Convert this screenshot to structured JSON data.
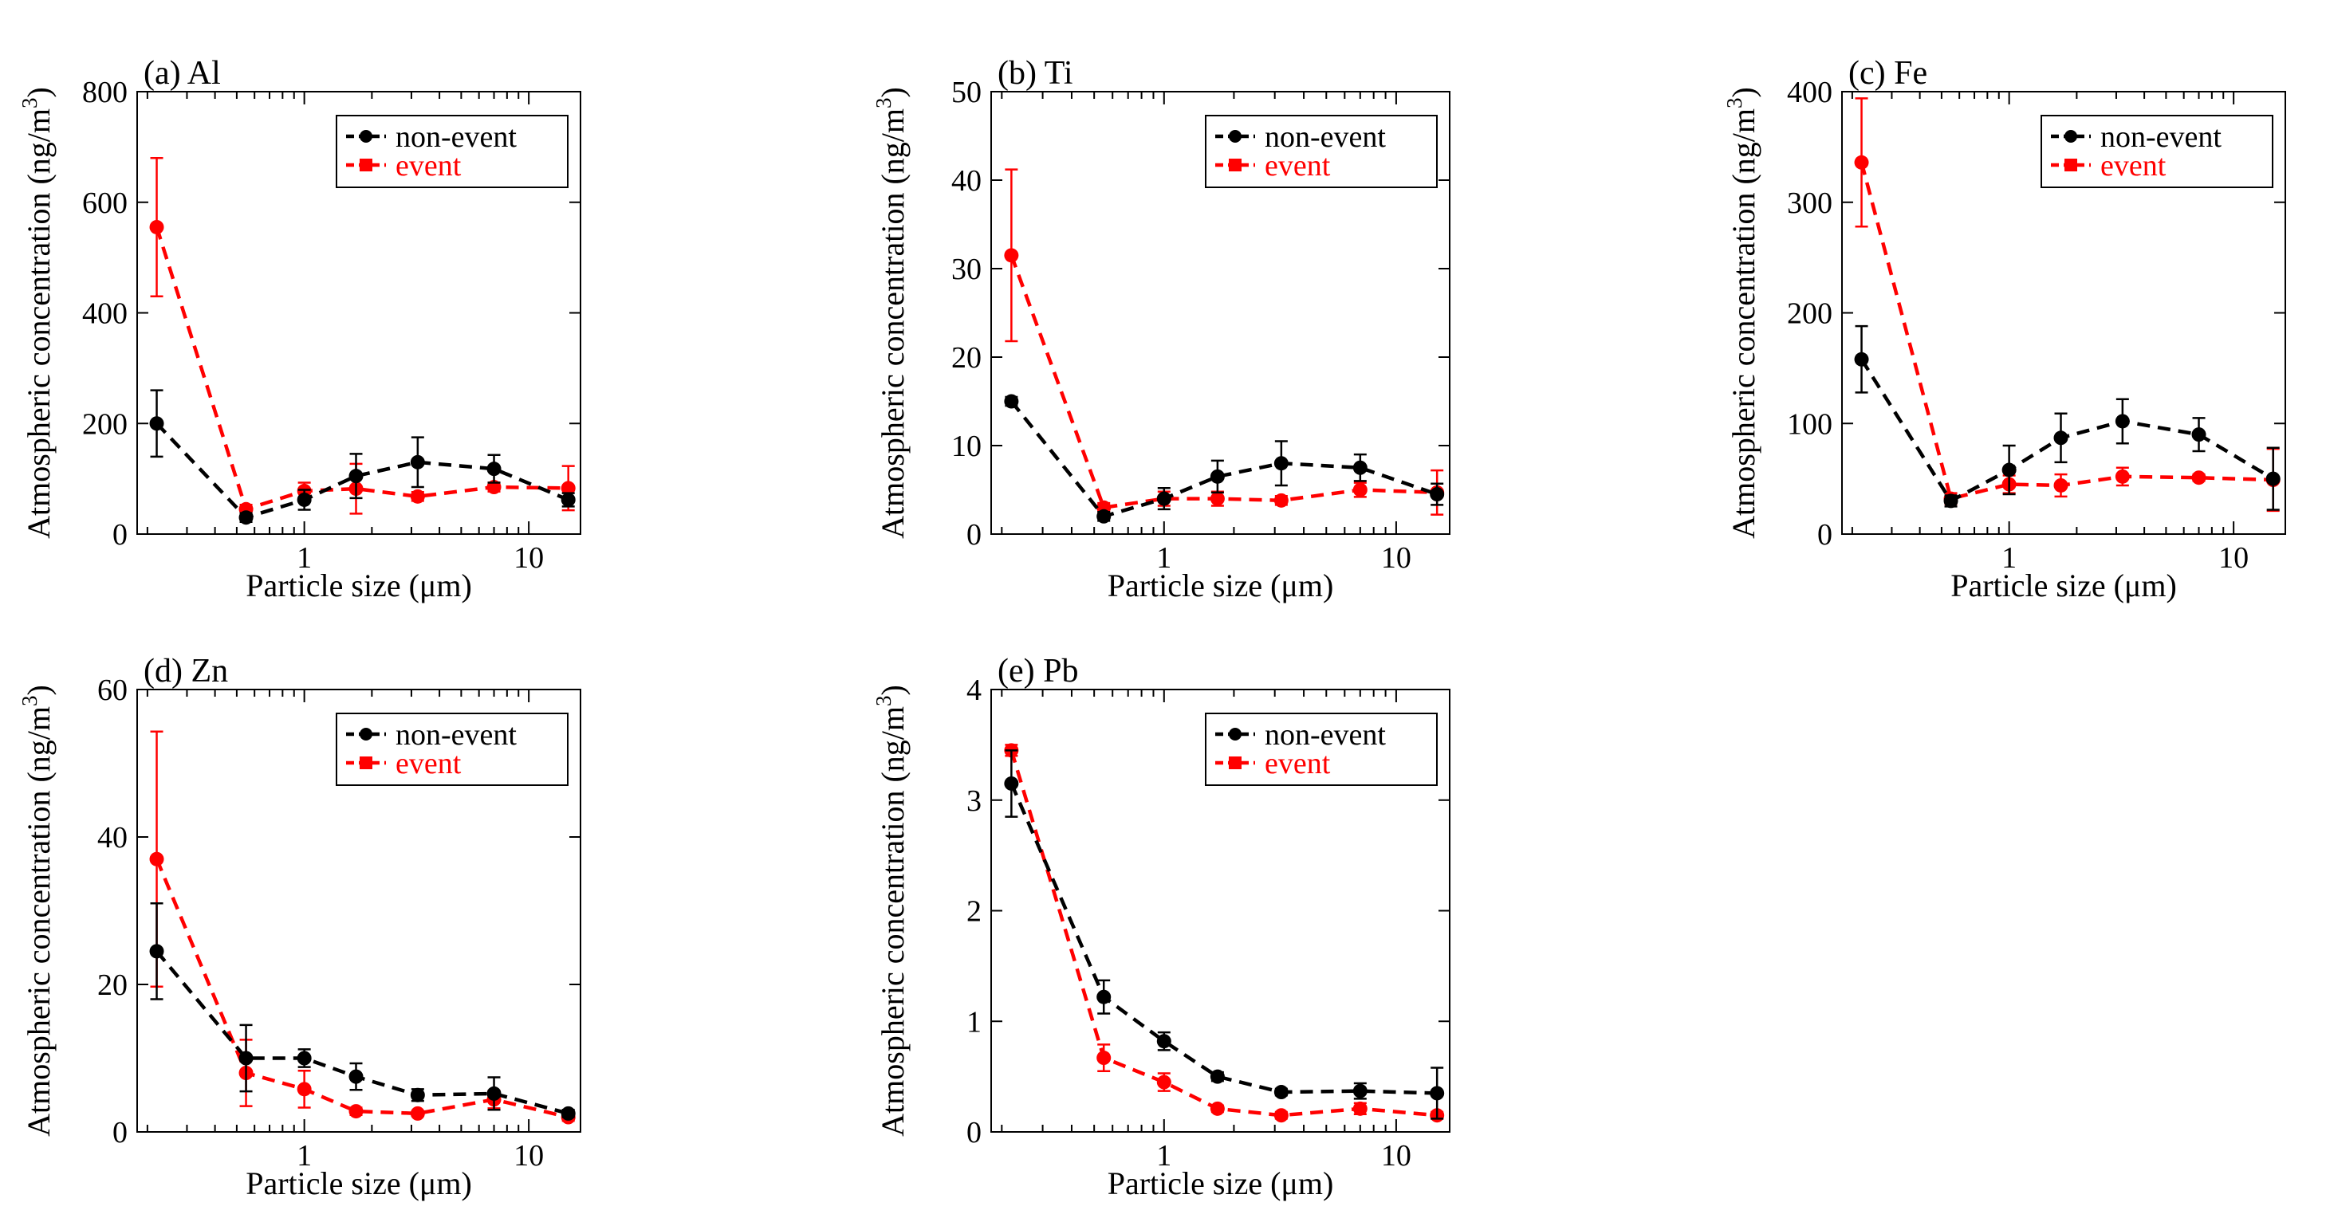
{
  "colors": {
    "non_event": "#000000",
    "event": "#ff0000",
    "axis": "#000000"
  },
  "chart_data": [
    {
      "type": "line",
      "title": "(a) Al",
      "xlabel": "Particle size (μm)",
      "ylabel": "Atmospheric concentration (ng/m",
      "ylabel_sup": "3",
      "ylabel_close": ")",
      "xscale": "log",
      "xlim": [
        0.18,
        17
      ],
      "ylim": [
        0,
        800
      ],
      "xticks": [
        1,
        10
      ],
      "xtick_labels": [
        "1",
        "10"
      ],
      "yticks": [
        0,
        200,
        400,
        600,
        800
      ],
      "ytick_labels": [
        "0",
        "200",
        "400",
        "600",
        "800"
      ],
      "legend": "top-right",
      "series": [
        {
          "name": "non-event",
          "x": [
            0.22,
            0.55,
            1.0,
            1.7,
            3.2,
            7.0,
            15.0
          ],
          "y": [
            200,
            30,
            62,
            105,
            130,
            118,
            62
          ],
          "err": [
            60,
            8,
            18,
            40,
            45,
            25,
            12
          ]
        },
        {
          "name": "event",
          "x": [
            0.22,
            0.55,
            1.0,
            1.7,
            3.2,
            7.0,
            15.0
          ],
          "y": [
            555,
            45,
            78,
            82,
            68,
            85,
            83
          ],
          "err": [
            125,
            8,
            15,
            45,
            8,
            8,
            40
          ]
        }
      ]
    },
    {
      "type": "line",
      "title": "(b) Ti",
      "xlabel": "Particle size (μm)",
      "ylabel": "Atmospheric concentration (ng/m",
      "ylabel_sup": "3",
      "ylabel_close": ")",
      "xscale": "log",
      "xlim": [
        0.18,
        17
      ],
      "ylim": [
        0,
        50
      ],
      "xticks": [
        1,
        10
      ],
      "xtick_labels": [
        "1",
        "10"
      ],
      "yticks": [
        0,
        10,
        20,
        30,
        40,
        50
      ],
      "ytick_labels": [
        "0",
        "10",
        "20",
        "30",
        "40",
        "50"
      ],
      "legend": "top-right",
      "series": [
        {
          "name": "non-event",
          "x": [
            0.22,
            0.55,
            1.0,
            1.7,
            3.2,
            7.0,
            15.0
          ],
          "y": [
            15,
            2,
            4,
            6.5,
            8,
            7.5,
            4.5
          ],
          "err": [
            0.5,
            0.5,
            1.2,
            1.8,
            2.5,
            1.5,
            1.2
          ]
        },
        {
          "name": "event",
          "x": [
            0.22,
            0.55,
            1.0,
            1.7,
            3.2,
            7.0,
            15.0
          ],
          "y": [
            31.5,
            3,
            4,
            4,
            3.8,
            5,
            4.7
          ],
          "err": [
            9.7,
            0.5,
            0.8,
            0.8,
            0.5,
            0.8,
            2.5
          ]
        }
      ]
    },
    {
      "type": "line",
      "title": "(c) Fe",
      "xlabel": "Particle size (μm)",
      "ylabel": "Atmospheric concentration (ng/m",
      "ylabel_sup": "3",
      "ylabel_close": ")",
      "xscale": "log",
      "xlim": [
        0.18,
        17
      ],
      "ylim": [
        0,
        400
      ],
      "xticks": [
        1,
        10
      ],
      "xtick_labels": [
        "1",
        "10"
      ],
      "yticks": [
        0,
        100,
        200,
        300,
        400
      ],
      "ytick_labels": [
        "0",
        "100",
        "200",
        "300",
        "400"
      ],
      "legend": "top-right",
      "series": [
        {
          "name": "non-event",
          "x": [
            0.22,
            0.55,
            1.0,
            1.7,
            3.2,
            7.0,
            15.0
          ],
          "y": [
            158,
            30,
            58,
            87,
            102,
            90,
            50
          ],
          "err": [
            30,
            5,
            22,
            22,
            20,
            15,
            28
          ]
        },
        {
          "name": "event",
          "x": [
            0.22,
            0.55,
            1.0,
            1.7,
            3.2,
            7.0,
            15.0
          ],
          "y": [
            336,
            32,
            45,
            44,
            52,
            51,
            49
          ],
          "err": [
            58,
            5,
            8,
            10,
            8,
            3,
            28
          ]
        }
      ]
    },
    {
      "type": "line",
      "title": "(d) Zn",
      "xlabel": "Particle size (μm)",
      "ylabel": "Atmospheric concentration (ng/m",
      "ylabel_sup": "3",
      "ylabel_close": ")",
      "xscale": "log",
      "xlim": [
        0.18,
        17
      ],
      "ylim": [
        0,
        60
      ],
      "xticks": [
        1,
        10
      ],
      "xtick_labels": [
        "1",
        "10"
      ],
      "yticks": [
        0,
        20,
        40,
        60
      ],
      "ytick_labels": [
        "0",
        "20",
        "40",
        "60"
      ],
      "legend": "top-right",
      "series": [
        {
          "name": "non-event",
          "x": [
            0.22,
            0.55,
            1.0,
            1.7,
            3.2,
            7.0,
            15.0
          ],
          "y": [
            24.5,
            10,
            10,
            7.5,
            5,
            5.2,
            2.5
          ],
          "err": [
            6.5,
            4.5,
            1.2,
            1.8,
            0.8,
            2.2,
            0.5
          ]
        },
        {
          "name": "event",
          "x": [
            0.22,
            0.55,
            1.0,
            1.7,
            3.2,
            7.0,
            15.0
          ],
          "y": [
            37,
            8,
            5.8,
            2.8,
            2.5,
            4.4,
            2
          ],
          "err": [
            17.3,
            4.5,
            2.5,
            0.5,
            0.3,
            1.2,
            0.5
          ]
        }
      ]
    },
    {
      "type": "line",
      "title": "(e) Pb",
      "xlabel": "Particle size (μm)",
      "ylabel": "Atmospheric concentration (ng/m",
      "ylabel_sup": "3",
      "ylabel_close": ")",
      "xscale": "log",
      "xlim": [
        0.18,
        17
      ],
      "ylim": [
        0,
        4
      ],
      "xticks": [
        1,
        10
      ],
      "xtick_labels": [
        "1",
        "10"
      ],
      "yticks": [
        0,
        1,
        2,
        3,
        4
      ],
      "ytick_labels": [
        "0",
        "1",
        "2",
        "3",
        "4"
      ],
      "legend": "top-right",
      "series": [
        {
          "name": "non-event",
          "x": [
            0.22,
            0.55,
            1.0,
            1.7,
            3.2,
            7.0,
            15.0
          ],
          "y": [
            3.15,
            1.22,
            0.82,
            0.5,
            0.36,
            0.37,
            0.35
          ],
          "err": [
            0.3,
            0.15,
            0.08,
            0.04,
            0.03,
            0.07,
            0.23
          ]
        },
        {
          "name": "event",
          "x": [
            0.22,
            0.55,
            1.0,
            1.7,
            3.2,
            7.0,
            15.0
          ],
          "y": [
            3.45,
            0.67,
            0.45,
            0.21,
            0.15,
            0.21,
            0.15
          ],
          "err": [
            0.05,
            0.12,
            0.08,
            0.03,
            0.03,
            0.05,
            0.03
          ]
        }
      ]
    }
  ]
}
